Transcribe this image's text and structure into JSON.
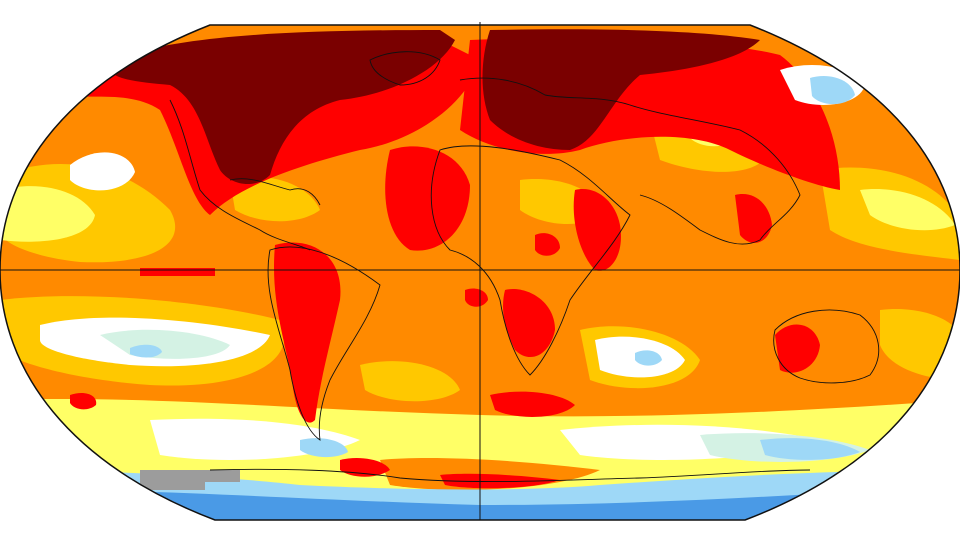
{
  "map": {
    "projection": "robinson",
    "colors": {
      "very_hot": "#7a0000",
      "hot": "#ff0000",
      "warm": "#ff8a00",
      "mild": "#ffc800",
      "slight": "#ffff66",
      "neutral": "#ffffff",
      "cool_light": "#d4f2e4",
      "cool": "#9ed8f7",
      "cold": "#4a9ae6",
      "no_data": "#9c9c9c",
      "outline": "#111111"
    },
    "grid_lines": [
      "equator",
      "prime-meridian"
    ]
  }
}
